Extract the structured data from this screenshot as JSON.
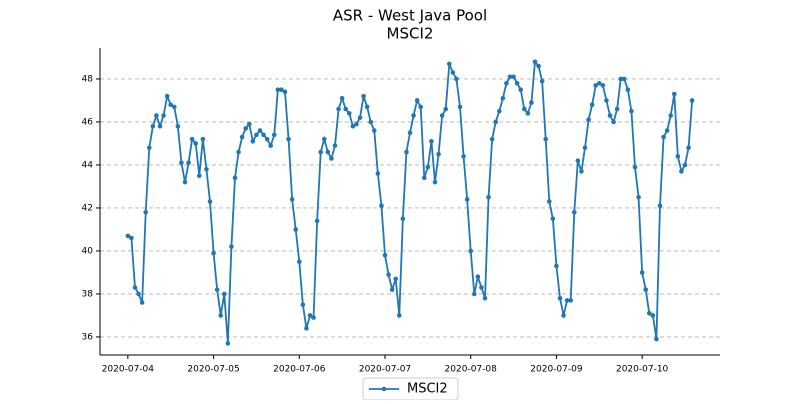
{
  "chart_data": {
    "type": "line",
    "title": "ASR - West Java Pool",
    "subtitle": "MSCI2",
    "xlim": [
      -7.8,
      165.8
    ],
    "xticks": [
      {
        "value": 0,
        "label": "2020-07-04"
      },
      {
        "value": 24,
        "label": "2020-07-05"
      },
      {
        "value": 48,
        "label": "2020-07-06"
      },
      {
        "value": 72,
        "label": "2020-07-07"
      },
      {
        "value": 96,
        "label": "2020-07-08"
      },
      {
        "value": 120,
        "label": "2020-07-09"
      },
      {
        "value": 144,
        "label": "2020-07-10"
      }
    ],
    "ylim": [
      35.16,
      49.44
    ],
    "yticks": [
      36,
      38,
      40,
      42,
      44,
      46,
      48
    ],
    "grid": true,
    "legend": "lower center",
    "series": [
      {
        "name": "MSCI2",
        "color": "#1f77b4",
        "values": [
          40.7,
          40.6,
          38.3,
          38.0,
          37.6,
          41.8,
          44.8,
          45.8,
          46.3,
          45.8,
          46.3,
          47.2,
          46.8,
          46.7,
          45.8,
          44.1,
          43.2,
          44.1,
          45.2,
          45.0,
          43.5,
          45.2,
          43.8,
          42.3,
          39.9,
          38.2,
          37.0,
          38.0,
          35.7,
          40.2,
          43.4,
          44.6,
          45.3,
          45.7,
          45.9,
          45.1,
          45.4,
          45.6,
          45.4,
          45.2,
          44.9,
          45.4,
          47.5,
          47.5,
          47.4,
          45.2,
          42.4,
          41.0,
          39.5,
          37.5,
          36.4,
          37.0,
          36.9,
          41.4,
          44.6,
          45.2,
          44.6,
          44.3,
          44.9,
          46.6,
          47.1,
          46.6,
          46.4,
          45.8,
          45.9,
          46.2,
          47.2,
          46.7,
          46.0,
          45.6,
          43.6,
          42.1,
          39.8,
          38.9,
          38.2,
          38.7,
          37.0,
          41.5,
          44.6,
          45.5,
          46.3,
          47.0,
          46.7,
          43.4,
          43.9,
          45.1,
          43.2,
          44.5,
          46.3,
          46.6,
          48.7,
          48.3,
          48.0,
          46.7,
          44.4,
          42.4,
          40.0,
          38.0,
          38.8,
          38.3,
          37.8,
          42.5,
          45.2,
          46.0,
          46.5,
          47.1,
          47.8,
          48.1,
          48.1,
          47.8,
          47.5,
          46.6,
          46.4,
          46.9,
          48.8,
          48.6,
          47.9,
          45.2,
          42.3,
          41.5,
          39.3,
          37.8,
          37.0,
          37.7,
          37.7,
          41.8,
          44.2,
          43.7,
          44.8,
          46.1,
          46.8,
          47.7,
          47.8,
          47.7,
          47.0,
          46.3,
          46.0,
          46.6,
          48.0,
          48.0,
          47.5,
          46.5,
          43.9,
          42.5,
          39.0,
          38.2,
          37.1,
          37.0,
          35.9,
          42.1,
          45.3,
          45.6,
          46.3,
          47.3,
          44.4,
          43.7,
          44.0,
          44.8,
          47.0
        ]
      }
    ]
  }
}
